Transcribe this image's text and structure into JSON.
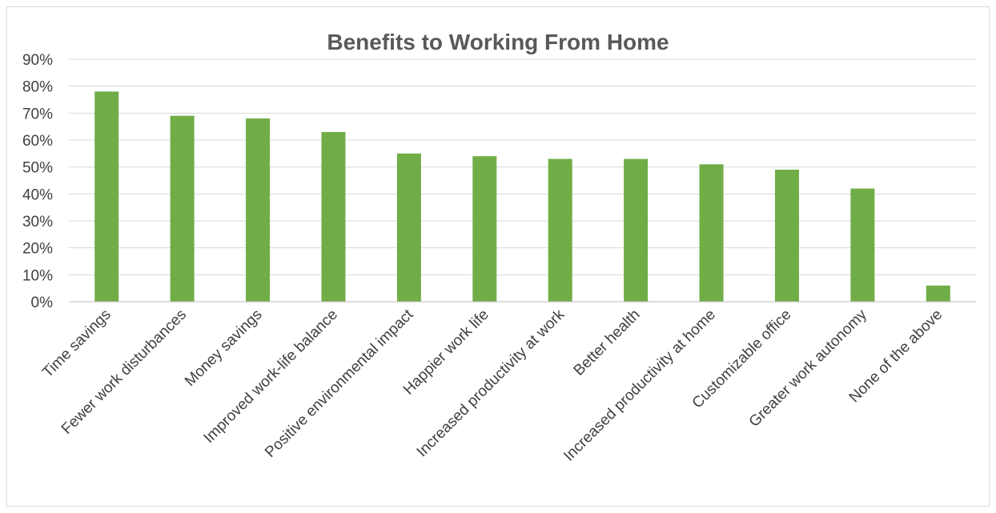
{
  "chart_data": {
    "type": "bar",
    "title": "Benefits to Working From Home",
    "xlabel": "",
    "ylabel": "",
    "categories": [
      "Time savings",
      "Fewer work disturbances",
      "Money savings",
      "Improved work-life balance",
      "Positive environmental impact",
      "Happier work life",
      "Increased productivity at work",
      "Better health",
      "Increased productivity at home",
      "Customizable office",
      "Greater work autonomy",
      "None of the above"
    ],
    "values": [
      78,
      69,
      68,
      63,
      55,
      54,
      53,
      53,
      51,
      49,
      42,
      6
    ],
    "ylim": [
      0,
      90
    ],
    "yticks": [
      "0%",
      "10%",
      "20%",
      "30%",
      "40%",
      "50%",
      "60%",
      "70%",
      "80%",
      "90%"
    ],
    "grid": true,
    "legend": "none",
    "bar_color": "#70ad47"
  }
}
